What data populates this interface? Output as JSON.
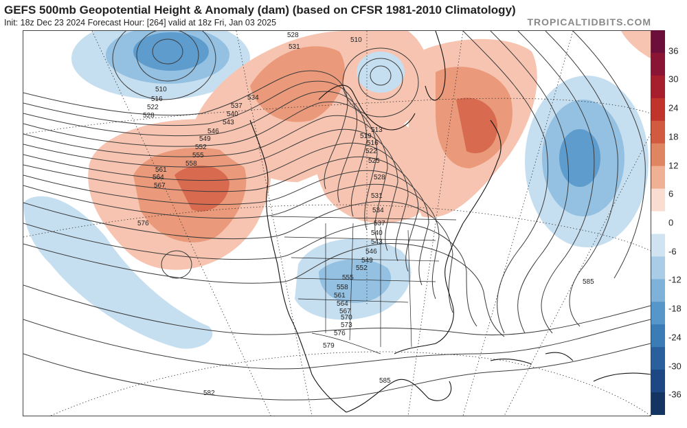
{
  "header": {
    "title": "GEFS 500mb Geopotential Height & Anomaly (dam) (based on CFSR 1981-2010 Climatology)",
    "subtitle": "Init: 18z Dec 23 2024   Forecast Hour: [264]   valid at 18z Fri, Jan 03 2025",
    "brand": "TROPICALTIDBITS.COM"
  },
  "colorbar": {
    "labels": [
      "36",
      "30",
      "24",
      "18",
      "12",
      "6",
      "0",
      "-6",
      "-12",
      "-18",
      "-24",
      "-30",
      "-36"
    ],
    "colors": [
      "#6b0f3a",
      "#8a1433",
      "#a71e2c",
      "#c0342b",
      "#d25a3e",
      "#e08562",
      "#efb094",
      "#f9ddd0",
      "#ffffff",
      "#cfe3f0",
      "#a9cde6",
      "#7fb2d8",
      "#5796c8",
      "#3b7bb6",
      "#2a5f9e",
      "#1d4884",
      "#143562"
    ]
  },
  "map": {
    "contour_labels": [
      "510",
      "516",
      "522",
      "528",
      "528",
      "531",
      "534",
      "537",
      "540",
      "543",
      "546",
      "549",
      "552",
      "555",
      "558",
      "561",
      "564",
      "567",
      "576",
      "510",
      "513",
      "516",
      "519",
      "522",
      "525",
      "528",
      "531",
      "534",
      "537",
      "540",
      "543",
      "546",
      "549",
      "552",
      "555",
      "558",
      "561",
      "564",
      "567",
      "570",
      "573",
      "576",
      "579",
      "582",
      "585",
      "585"
    ],
    "anomaly_colors": {
      "warm_light": "#f6c4b0",
      "warm_mid": "#ea9a7a",
      "warm_strong": "#d76a4f",
      "warm_core": "#c44536",
      "cool_light": "#c6dff0",
      "cool_mid": "#94c0e1",
      "cool_strong": "#5e9cce",
      "cool_core": "#3c7fbd"
    }
  }
}
